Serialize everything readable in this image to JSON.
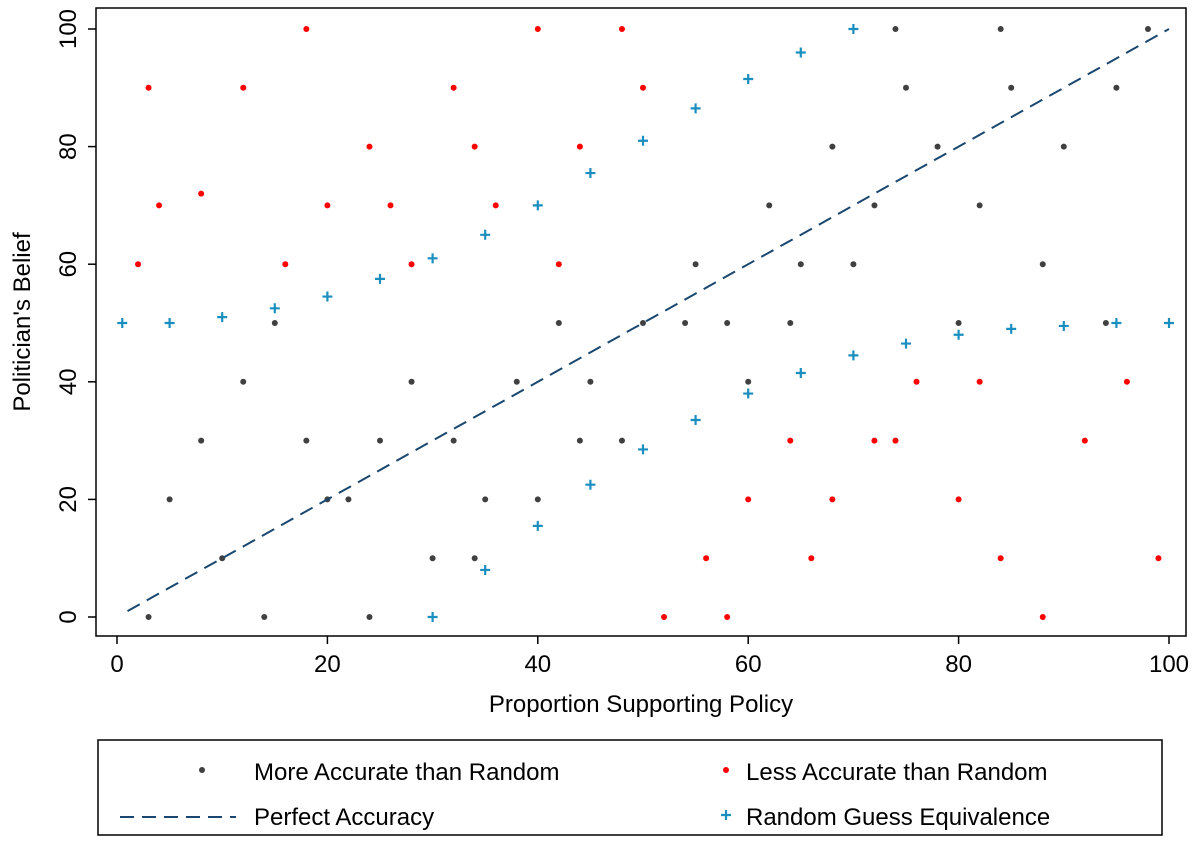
{
  "chart_data": {
    "type": "scatter",
    "xlabel": "Proportion Supporting Policy",
    "ylabel": "Politician's Belief",
    "xlim": [
      0,
      100
    ],
    "ylim": [
      0,
      100
    ],
    "x_ticks": [
      0,
      20,
      40,
      60,
      80,
      100
    ],
    "y_ticks": [
      0,
      20,
      40,
      60,
      80,
      100
    ],
    "x_tick_labels": [
      "0",
      "20",
      "40",
      "60",
      "80",
      "100"
    ],
    "y_tick_labels": [
      "0",
      "20",
      "40",
      "60",
      "80",
      "100"
    ],
    "grid": false,
    "legend_position": "bottom",
    "colors": {
      "more_accurate": "#404040",
      "less_accurate": "#ff0000",
      "perfect_accuracy": "#1a476f",
      "random_guess": "#1a8fbf"
    },
    "series": [
      {
        "name": "More Accurate than Random",
        "kind": "scatter",
        "color": "#404040",
        "x": [
          5,
          8,
          12,
          15,
          18,
          22,
          25,
          28,
          32,
          35,
          38,
          42,
          45,
          48,
          55,
          58,
          62,
          65,
          68,
          72,
          75,
          78,
          82,
          85,
          90,
          95,
          98,
          10,
          20,
          30,
          40,
          50,
          60,
          70,
          80,
          88,
          3,
          14,
          24,
          34,
          44,
          54,
          64,
          74,
          84,
          94
        ],
        "y": [
          20,
          30,
          40,
          50,
          30,
          20,
          30,
          40,
          30,
          20,
          40,
          50,
          40,
          30,
          60,
          50,
          70,
          60,
          80,
          70,
          90,
          80,
          70,
          90,
          80,
          90,
          100,
          10,
          20,
          10,
          20,
          50,
          40,
          60,
          50,
          60,
          0,
          0,
          0,
          10,
          30,
          50,
          50,
          100,
          100,
          50
        ]
      },
      {
        "name": "Less Accurate than Random",
        "kind": "scatter",
        "color": "#ff0000",
        "x": [
          2,
          4,
          8,
          12,
          16,
          20,
          24,
          28,
          32,
          36,
          40,
          44,
          48,
          52,
          56,
          60,
          64,
          68,
          72,
          76,
          80,
          84,
          88,
          92,
          96,
          99,
          3,
          18,
          26,
          34,
          42,
          50,
          58,
          66,
          74,
          82
        ],
        "y": [
          60,
          70,
          72,
          90,
          60,
          70,
          80,
          60,
          90,
          70,
          100,
          80,
          100,
          0,
          10,
          20,
          30,
          20,
          30,
          40,
          20,
          10,
          0,
          30,
          40,
          10,
          90,
          100,
          70,
          80,
          60,
          90,
          0,
          10,
          30,
          40
        ]
      },
      {
        "name": "Perfect Accuracy",
        "kind": "line",
        "style": "dashed",
        "color": "#1a476f",
        "x": [
          1,
          100
        ],
        "y": [
          1,
          100
        ]
      },
      {
        "name": "Random Guess Equivalence",
        "kind": "markers-plus",
        "color": "#1a8fbf",
        "x": [
          0.5,
          5,
          10,
          15,
          20,
          25,
          30,
          35,
          40,
          45,
          50,
          55,
          60,
          65,
          70,
          30,
          35,
          40,
          45,
          50,
          55,
          60,
          65,
          70,
          75,
          80,
          85,
          90,
          95,
          100
        ],
        "y": [
          50,
          50,
          51,
          52.5,
          54.5,
          57.5,
          61,
          65,
          70,
          75.5,
          81,
          86.5,
          91.5,
          96,
          100,
          0,
          8,
          15.5,
          22.5,
          28.5,
          33.5,
          38,
          41.5,
          44.5,
          46.5,
          48,
          49,
          49.5,
          50,
          50
        ]
      }
    ],
    "legend": [
      {
        "label": "More Accurate than Random",
        "symbol": "dot",
        "color": "#404040"
      },
      {
        "label": "Less Accurate than Random",
        "symbol": "dot",
        "color": "#ff0000"
      },
      {
        "label": "Perfect Accuracy",
        "symbol": "dash",
        "color": "#1a476f"
      },
      {
        "label": "Random Guess Equivalence",
        "symbol": "plus",
        "color": "#1a8fbf"
      }
    ]
  }
}
